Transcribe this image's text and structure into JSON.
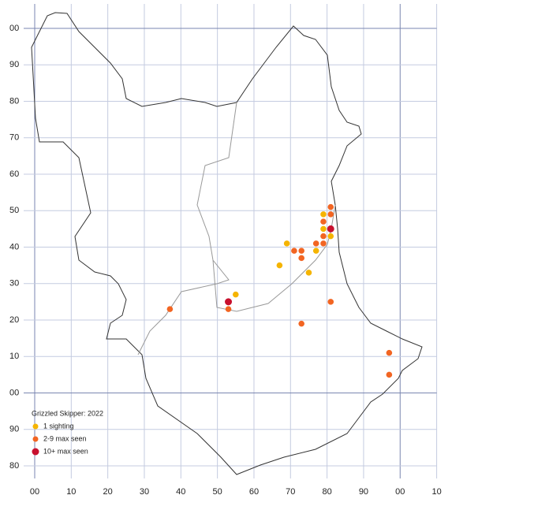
{
  "chart_data": {
    "type": "scatter",
    "xlim": [
      0,
      110
    ],
    "ylim": [
      -20,
      100
    ],
    "xticks": [
      {
        "value": 0,
        "label": "00"
      },
      10,
      20,
      30,
      40,
      50,
      60,
      70,
      80,
      90,
      {
        "value": 100,
        "label": "00"
      },
      {
        "value": 110,
        "label": "10"
      }
    ],
    "yticks": [
      {
        "value": 100,
        "label": "00"
      },
      90,
      80,
      70,
      60,
      50,
      40,
      30,
      20,
      10,
      {
        "value": 0,
        "label": "00"
      },
      {
        "value": -10,
        "label": "90"
      },
      {
        "value": -20,
        "label": "80"
      }
    ],
    "grid": true,
    "legend_title": "Grizzled Skipper:  2022",
    "series": [
      {
        "name": "1 sighting",
        "color": "#f5b400",
        "x": [
          79,
          79,
          81,
          77,
          69,
          67,
          75,
          55
        ],
        "values": [
          49,
          45,
          43,
          39,
          41,
          35,
          33,
          27
        ]
      },
      {
        "name": "2-9 max seen",
        "color": "#f26522",
        "x": [
          81,
          81,
          79,
          79,
          77,
          79,
          71,
          73,
          73,
          81,
          73,
          53,
          37,
          97,
          97
        ],
        "values": [
          51,
          49,
          47,
          43,
          41,
          41,
          39,
          39,
          37,
          25,
          19,
          23,
          23,
          11,
          5
        ]
      },
      {
        "name": "10+ max seen",
        "color": "#c8102e",
        "x": [
          81,
          53
        ],
        "values": [
          45,
          25
        ]
      }
    ]
  }
}
